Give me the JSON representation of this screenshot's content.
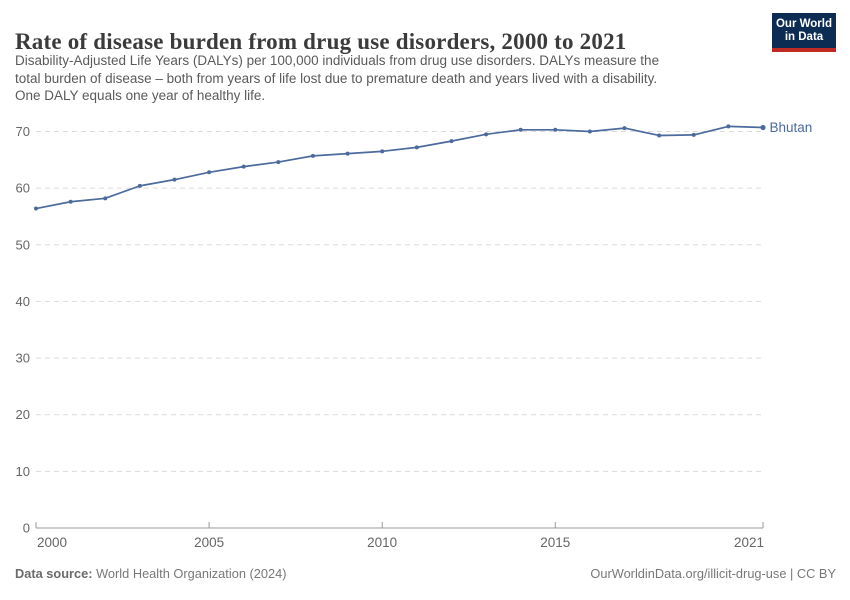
{
  "header": {
    "title": "Rate of disease burden from drug use disorders, 2000 to 2021",
    "subtitle_lines": [
      "Disability-Adjusted Life Years (DALYs) per 100,000 individuals from drug use disorders. DALYs measure the",
      "total burden of disease – both from years of life lost due to premature death and years lived with a disability.",
      "One DALY equals one year of healthy life."
    ]
  },
  "logo": {
    "line1": "Our World",
    "line2": "in Data",
    "bg_color": "#0d2c54",
    "bar_color": "#bf2b23"
  },
  "chart_data": {
    "type": "line",
    "title": "Rate of disease burden from drug use disorders, 2000 to 2021",
    "xlabel": "",
    "ylabel": "DALYs per 100,000 individuals",
    "xlim": [
      2000,
      2021
    ],
    "ylim": [
      0,
      70
    ],
    "grid": "horizontal-dashed",
    "legend_position": "end-of-line-label",
    "xticks": [
      "2000",
      "2005",
      "2010",
      "2015",
      "2021"
    ],
    "yticks": [
      0,
      10,
      20,
      30,
      40,
      50,
      60,
      70
    ],
    "series": [
      {
        "name": "Bhutan",
        "color": "#4c6a9d",
        "x": [
          2000,
          2001,
          2002,
          2003,
          2004,
          2005,
          2006,
          2007,
          2008,
          2009,
          2010,
          2011,
          2012,
          2013,
          2014,
          2015,
          2016,
          2017,
          2018,
          2019,
          2020,
          2021
        ],
        "values": [
          56.4,
          57.6,
          58.2,
          60.4,
          61.5,
          62.8,
          63.8,
          64.6,
          65.7,
          66.1,
          66.5,
          67.2,
          68.3,
          69.5,
          70.3,
          70.3,
          70.0,
          70.6,
          69.3,
          69.4,
          70.9,
          70.7
        ]
      }
    ]
  },
  "footer": {
    "datasource_label": "Data source:",
    "datasource_value": " World Health Organization (2024)",
    "right_text": "OurWorldinData.org/illicit-drug-use | CC BY"
  },
  "colors": {
    "grid": "#dcdcdc",
    "axis": "#999999",
    "tick_label": "#666666",
    "title": "#3b3b3b",
    "subtitle": "#5a5a5a"
  }
}
